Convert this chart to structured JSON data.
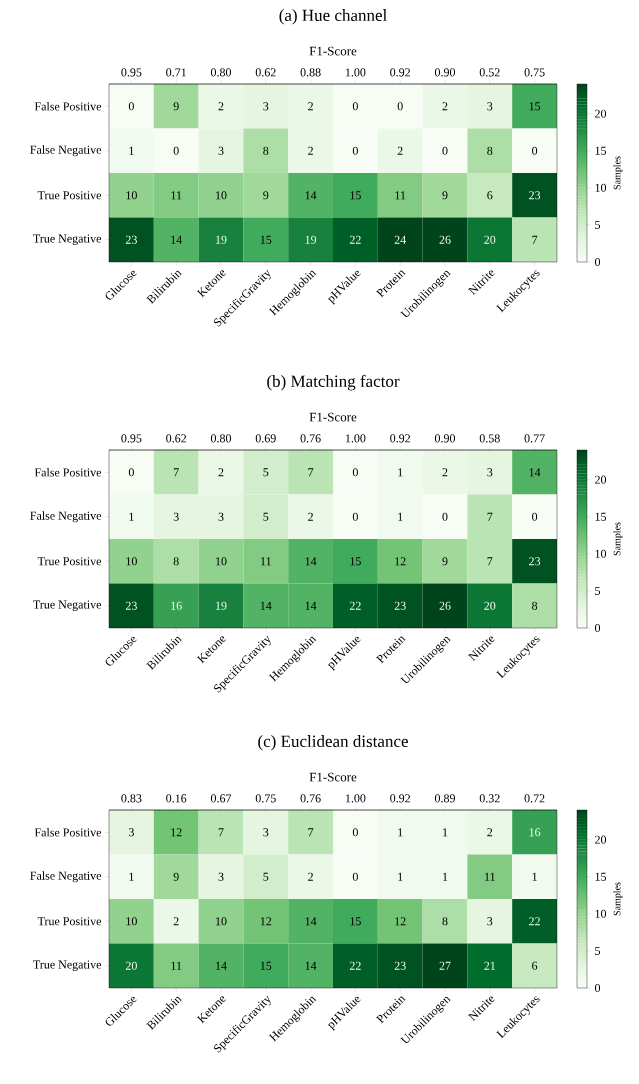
{
  "chart_data": [
    {
      "type": "heatmap",
      "title": "(a) Hue channel",
      "x2label": "F1-Score",
      "clabel": "Samples",
      "categories": [
        "Glucose",
        "Bilirubin",
        "Ketone",
        "SpecificGravity",
        "Hemoglobin",
        "pHValue",
        "Protein",
        "Urobilinogen",
        "Nitrite",
        "Leukocytes"
      ],
      "y_categories": [
        "False Positive",
        "False Negative",
        "True Positive",
        "True Negative"
      ],
      "cells": [
        [
          0,
          9,
          2,
          3,
          2,
          0,
          0,
          2,
          3,
          15
        ],
        [
          1,
          0,
          3,
          8,
          2,
          0,
          2,
          0,
          8,
          0
        ],
        [
          10,
          11,
          10,
          9,
          14,
          15,
          11,
          9,
          6,
          23
        ],
        [
          23,
          14,
          19,
          15,
          19,
          22,
          24,
          26,
          20,
          7
        ]
      ],
      "annotations": [
        "0.95",
        "0.71",
        "0.80",
        "0.62",
        "0.88",
        "1.00",
        "0.92",
        "0.90",
        "0.52",
        "0.75"
      ],
      "clim": [
        0,
        24
      ],
      "cticks": [
        0,
        5,
        10,
        15,
        20
      ],
      "data_labels": true
    },
    {
      "type": "heatmap",
      "title": "(b) Matching factor",
      "x2label": "F1-Score",
      "clabel": "Samples",
      "categories": [
        "Glucose",
        "Bilirubin",
        "Ketone",
        "SpecificGravity",
        "Hemoglobin",
        "pHValue",
        "Protein",
        "Urobilinogen",
        "Nitrite",
        "Leukocytes"
      ],
      "y_categories": [
        "False Positive",
        "False Negative",
        "True Positive",
        "True Negative"
      ],
      "cells": [
        [
          0,
          7,
          2,
          5,
          7,
          0,
          1,
          2,
          3,
          14
        ],
        [
          1,
          3,
          3,
          5,
          2,
          0,
          1,
          0,
          7,
          0
        ],
        [
          10,
          8,
          10,
          11,
          14,
          15,
          12,
          9,
          7,
          23
        ],
        [
          23,
          16,
          19,
          14,
          14,
          22,
          23,
          26,
          20,
          8
        ]
      ],
      "annotations": [
        "0.95",
        "0.62",
        "0.80",
        "0.69",
        "0.76",
        "1.00",
        "0.92",
        "0.90",
        "0.58",
        "0.77"
      ],
      "clim": [
        0,
        24
      ],
      "cticks": [
        0,
        5,
        10,
        15,
        20
      ],
      "data_labels": true
    },
    {
      "type": "heatmap",
      "title": "(c) Euclidean distance",
      "x2label": "F1-Score",
      "clabel": "Samples",
      "categories": [
        "Glucose",
        "Bilirubin",
        "Ketone",
        "SpecificGravity",
        "Hemoglobin",
        "pHValue",
        "Protein",
        "Urobilinogen",
        "Nitrite",
        "Leukocytes"
      ],
      "y_categories": [
        "False Positive",
        "False Negative",
        "True Positive",
        "True Negative"
      ],
      "cells": [
        [
          3,
          12,
          7,
          3,
          7,
          0,
          1,
          1,
          2,
          16
        ],
        [
          1,
          9,
          3,
          5,
          2,
          0,
          1,
          1,
          11,
          1
        ],
        [
          10,
          2,
          10,
          12,
          14,
          15,
          12,
          8,
          3,
          22
        ],
        [
          20,
          11,
          14,
          15,
          14,
          22,
          23,
          27,
          21,
          6
        ]
      ],
      "annotations": [
        "0.83",
        "0.16",
        "0.67",
        "0.75",
        "0.76",
        "1.00",
        "0.92",
        "0.89",
        "0.32",
        "0.72"
      ],
      "clim": [
        0,
        24
      ],
      "cticks": [
        0,
        5,
        10,
        15,
        20
      ],
      "data_labels": true
    }
  ]
}
